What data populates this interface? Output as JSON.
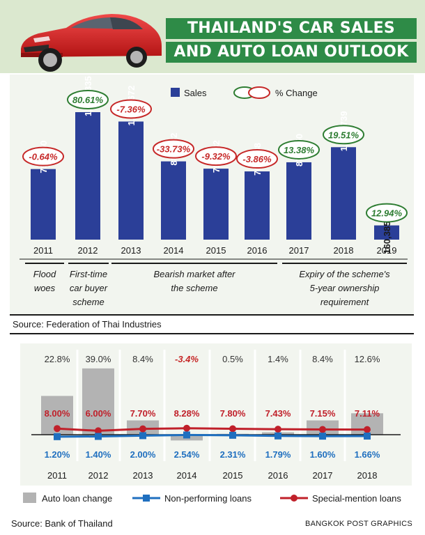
{
  "title": {
    "line1": "THAILAND'S CAR SALES",
    "line2": "AND AUTO LOAN OUTLOOK"
  },
  "colors": {
    "sales_bar": "#2b3f98",
    "positive": "#2e7d32",
    "negative": "#c62828",
    "auto_loan_bar": "#b3b3b3",
    "npl_line": "#1f6fbf",
    "sml_line": "#c0202a"
  },
  "chart_data": [
    {
      "type": "bar",
      "title": "Car sales",
      "categories": [
        "2011",
        "2012",
        "2013",
        "2014",
        "2015",
        "2016",
        "2017",
        "2018",
        "2019"
      ],
      "values": [
        795250,
        1436335,
        1330672,
        881832,
        799632,
        768788,
        871650,
        1041739,
        160385
      ],
      "value_labels": [
        "795,250",
        "1,436,335",
        "1,330,672",
        "881,832",
        "799,632",
        "768,788",
        "871,650",
        "1,041,739",
        "160,385"
      ],
      "pct_change": [
        "-0.64%",
        "80.61%",
        "-7.36%",
        "-33.73%",
        "-9.32%",
        "-3.86%",
        "13.38%",
        "19.51%",
        "12.94%"
      ],
      "pct_positive": [
        false,
        true,
        false,
        false,
        false,
        false,
        true,
        true,
        true
      ],
      "legend": {
        "sales": "Sales",
        "change": "% Change"
      },
      "annotations": [
        {
          "text": "Flood woes",
          "from": "2011",
          "to": "2011"
        },
        {
          "text": "First-time car buyer scheme",
          "from": "2012",
          "to": "2012"
        },
        {
          "text": "Bearish market after the scheme",
          "from": "2013",
          "to": "2016"
        },
        {
          "text": "Expiry of the scheme's 5-year ownership requirement",
          "from": "2017",
          "to": "2019"
        }
      ],
      "source": "Source: Federation of Thai Industries"
    },
    {
      "type": "bar",
      "title": "Auto loans",
      "categories": [
        "2011",
        "2012",
        "2013",
        "2014",
        "2015",
        "2016",
        "2017",
        "2018"
      ],
      "series": [
        {
          "name": "Auto loan change",
          "kind": "bar",
          "values": [
            22.8,
            39.0,
            8.4,
            -3.4,
            0.5,
            1.4,
            8.4,
            12.6
          ],
          "labels": [
            "22.8%",
            "39.0%",
            "8.4%",
            "-3.4%",
            "0.5%",
            "1.4%",
            "8.4%",
            "12.6%"
          ]
        },
        {
          "name": "Non-performing loans",
          "kind": "line",
          "values": [
            1.2,
            1.4,
            2.0,
            2.54,
            2.31,
            1.79,
            1.6,
            1.66
          ],
          "labels": [
            "1.20%",
            "1.40%",
            "2.00%",
            "2.54%",
            "2.31%",
            "1.79%",
            "1.60%",
            "1.66%"
          ]
        },
        {
          "name": "Special-mention loans",
          "kind": "line",
          "values": [
            8.0,
            6.0,
            7.7,
            8.28,
            7.8,
            7.43,
            7.15,
            7.11
          ],
          "labels": [
            "8.00%",
            "6.00%",
            "7.70%",
            "8.28%",
            "7.80%",
            "7.43%",
            "7.15%",
            "7.11%"
          ]
        }
      ],
      "source": "Source: Bank of Thailand"
    }
  ],
  "credit": "BANGKOK POST GRAPHICS"
}
